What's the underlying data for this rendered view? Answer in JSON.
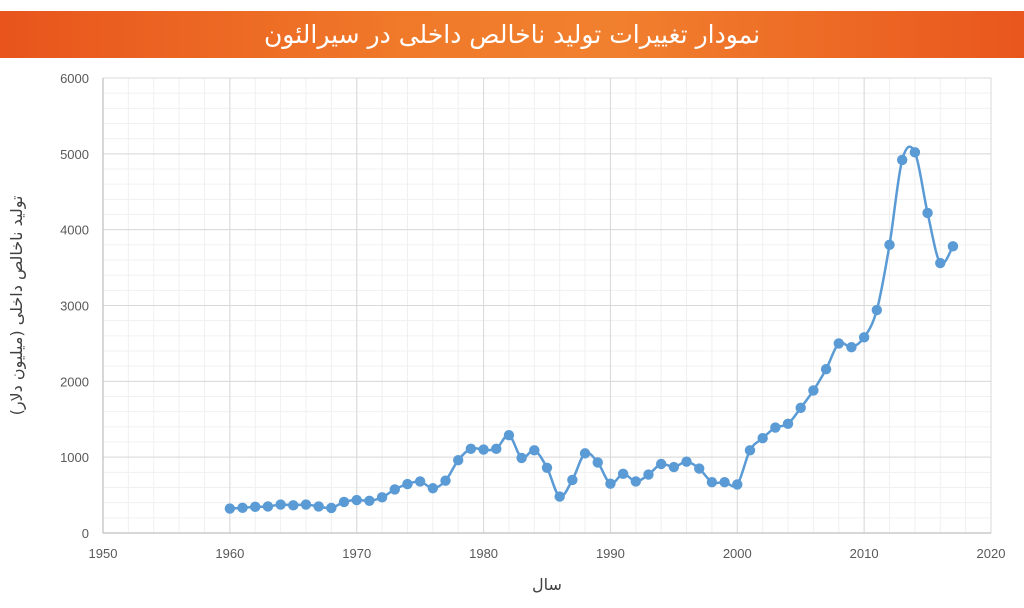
{
  "title": "نمودار تغییرات تولید ناخالص داخلی در سیرالئون",
  "colors": {
    "title_bar": "#ee6a26",
    "series": "#5b9bd5",
    "grid_major": "#d9d9d9",
    "grid_minor": "#f0f0f0"
  },
  "chart_data": {
    "type": "line",
    "xlabel": "سال",
    "ylabel": "تولید ناخالص داخلی (میلیون دلار)",
    "xlim": [
      1950,
      2020
    ],
    "ylim": [
      0,
      6000
    ],
    "x_ticks": [
      1950,
      1960,
      1970,
      1980,
      1990,
      2000,
      2010,
      2020
    ],
    "y_ticks": [
      0,
      1000,
      2000,
      3000,
      4000,
      5000,
      6000
    ],
    "grid": true,
    "markers": true,
    "smooth": true,
    "series": [
      {
        "x": [
          1960,
          1961,
          1962,
          1963,
          1964,
          1965,
          1966,
          1967,
          1968,
          1969,
          1970,
          1971,
          1972,
          1973,
          1974,
          1975,
          1976,
          1977,
          1978,
          1979,
          1980,
          1981,
          1982,
          1983,
          1984,
          1985,
          1986,
          1987,
          1988,
          1989,
          1990,
          1991,
          1992,
          1993,
          1994,
          1995,
          1996,
          1997,
          1998,
          1999,
          2000,
          2001,
          2002,
          2003,
          2004,
          2005,
          2006,
          2007,
          2008,
          2009,
          2010,
          2011,
          2012,
          2013,
          2014,
          2015,
          2016,
          2017
        ],
        "values": [
          322,
          332,
          345,
          350,
          375,
          365,
          375,
          350,
          330,
          410,
          435,
          425,
          470,
          575,
          645,
          680,
          590,
          690,
          960,
          1110,
          1100,
          1110,
          1290,
          990,
          1090,
          860,
          480,
          700,
          1050,
          930,
          650,
          780,
          680,
          770,
          910,
          870,
          940,
          850,
          670,
          670,
          640,
          1090,
          1250,
          1390,
          1440,
          1650,
          1880,
          2160,
          2500,
          2450,
          2580,
          2940,
          3800,
          4920,
          5020,
          4220,
          3560,
          3780
        ]
      }
    ]
  }
}
